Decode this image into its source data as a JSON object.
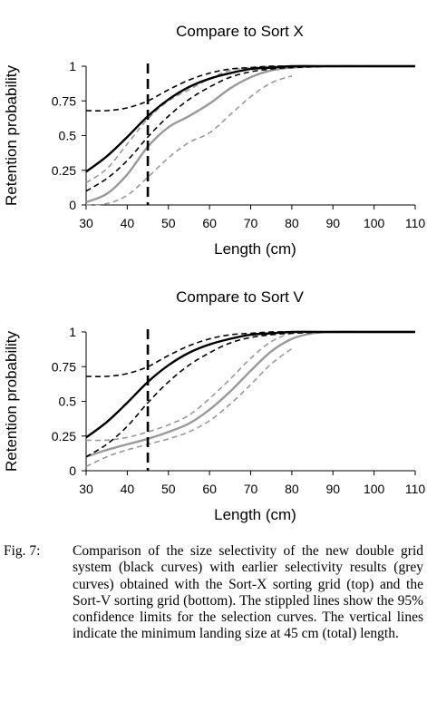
{
  "chart_data": [
    {
      "type": "line",
      "title": "Compare to Sort X",
      "xlabel": "Length (cm)",
      "ylabel": "Retention probability",
      "xlim": [
        30,
        110
      ],
      "ylim": [
        0,
        1
      ],
      "xticks": [
        "30",
        "40",
        "50",
        "60",
        "70",
        "80",
        "90",
        "100",
        "110"
      ],
      "yticks": [
        "0",
        "0.25",
        "0.5",
        "0.75",
        "1"
      ],
      "vline_x": 45,
      "series": [
        {
          "color": "#000000",
          "dash": "solid",
          "x": [
            30,
            35,
            40,
            45,
            50,
            55,
            60,
            65,
            70,
            75,
            80,
            90,
            100,
            110
          ],
          "y": [
            0.24,
            0.35,
            0.49,
            0.64,
            0.76,
            0.85,
            0.91,
            0.95,
            0.98,
            0.99,
            1.0,
            1.0,
            1.0,
            1.0
          ]
        },
        {
          "color": "#000000",
          "dash": "dashed",
          "x": [
            30,
            35,
            40,
            45,
            50,
            55,
            60,
            65,
            70,
            75,
            80,
            90,
            100,
            110
          ],
          "y": [
            0.68,
            0.68,
            0.7,
            0.75,
            0.83,
            0.9,
            0.95,
            0.98,
            0.99,
            1.0,
            1.0,
            1.0,
            1.0,
            1.0
          ]
        },
        {
          "color": "#000000",
          "dash": "dashed",
          "x": [
            30,
            35,
            40,
            45,
            50,
            55,
            60,
            65,
            70,
            75,
            80,
            90,
            100,
            110
          ],
          "y": [
            0.1,
            0.19,
            0.32,
            0.49,
            0.64,
            0.76,
            0.85,
            0.92,
            0.96,
            0.98,
            0.99,
            1.0,
            1.0,
            1.0
          ]
        },
        {
          "color": "#999999",
          "dash": "solid",
          "x": [
            30,
            35,
            40,
            45,
            50,
            55,
            60,
            65,
            70,
            75,
            80,
            90,
            100,
            110
          ],
          "y": [
            0.02,
            0.08,
            0.22,
            0.42,
            0.56,
            0.64,
            0.73,
            0.84,
            0.92,
            0.97,
            0.99,
            1.0,
            1.0,
            1.0
          ]
        },
        {
          "color": "#999999",
          "dash": "dashed",
          "x": [
            30,
            35,
            40,
            45,
            50,
            55,
            60,
            65,
            70,
            75,
            80,
            90,
            100,
            110
          ],
          "y": [
            0.16,
            0.26,
            0.44,
            0.62,
            0.75,
            0.83,
            0.91,
            0.97,
            0.99,
            1.0,
            1.0,
            1.0,
            1.0,
            1.0
          ]
        },
        {
          "color": "#999999",
          "dash": "dashed",
          "x": [
            30,
            35,
            40,
            45,
            50,
            55,
            60,
            65,
            70,
            75,
            80
          ],
          "y": [
            0.0,
            0.01,
            0.07,
            0.2,
            0.34,
            0.45,
            0.52,
            0.65,
            0.78,
            0.88,
            0.93
          ]
        }
      ]
    },
    {
      "type": "line",
      "title": "Compare to Sort V",
      "xlabel": "Length (cm)",
      "ylabel": "Retention probability",
      "xlim": [
        30,
        110
      ],
      "ylim": [
        0,
        1
      ],
      "xticks": [
        "30",
        "40",
        "50",
        "60",
        "70",
        "80",
        "90",
        "100",
        "110"
      ],
      "yticks": [
        "0",
        "0.25",
        "0.5",
        "0.75",
        "1"
      ],
      "vline_x": 45,
      "series": [
        {
          "color": "#000000",
          "dash": "solid",
          "x": [
            30,
            35,
            40,
            45,
            50,
            55,
            60,
            65,
            70,
            75,
            80,
            90,
            100,
            110
          ],
          "y": [
            0.24,
            0.35,
            0.49,
            0.64,
            0.76,
            0.85,
            0.91,
            0.95,
            0.98,
            0.99,
            1.0,
            1.0,
            1.0,
            1.0
          ]
        },
        {
          "color": "#000000",
          "dash": "dashed",
          "x": [
            30,
            35,
            40,
            45,
            50,
            55,
            60,
            65,
            70,
            75,
            80,
            90,
            100,
            110
          ],
          "y": [
            0.68,
            0.68,
            0.7,
            0.75,
            0.83,
            0.9,
            0.95,
            0.98,
            0.99,
            1.0,
            1.0,
            1.0,
            1.0,
            1.0
          ]
        },
        {
          "color": "#000000",
          "dash": "dashed",
          "x": [
            30,
            35,
            40,
            45,
            50,
            55,
            60,
            65,
            70,
            75,
            80,
            90,
            100,
            110
          ],
          "y": [
            0.1,
            0.19,
            0.32,
            0.49,
            0.64,
            0.76,
            0.85,
            0.92,
            0.96,
            0.98,
            0.99,
            1.0,
            1.0,
            1.0
          ]
        },
        {
          "color": "#999999",
          "dash": "solid",
          "x": [
            30,
            35,
            40,
            45,
            50,
            55,
            60,
            65,
            70,
            75,
            80,
            85,
            90,
            100,
            110
          ],
          "y": [
            0.1,
            0.15,
            0.19,
            0.23,
            0.28,
            0.34,
            0.44,
            0.57,
            0.72,
            0.86,
            0.95,
            0.99,
            1.0,
            1.0,
            1.0
          ]
        },
        {
          "color": "#999999",
          "dash": "dashed",
          "x": [
            30,
            35,
            40,
            45,
            50,
            55,
            60,
            65,
            70,
            75,
            80,
            85,
            90,
            100,
            110
          ],
          "y": [
            0.22,
            0.22,
            0.24,
            0.28,
            0.33,
            0.4,
            0.52,
            0.66,
            0.81,
            0.93,
            0.99,
            1.0,
            1.0,
            1.0,
            1.0
          ]
        },
        {
          "color": "#999999",
          "dash": "dashed",
          "x": [
            30,
            35,
            40,
            45,
            50,
            55,
            60,
            65,
            70,
            75,
            80
          ],
          "y": [
            0.03,
            0.1,
            0.15,
            0.19,
            0.23,
            0.28,
            0.36,
            0.48,
            0.62,
            0.77,
            0.88
          ]
        }
      ]
    }
  ],
  "caption": {
    "label": "Fig. 7:",
    "text": "Comparison of the size selectivity of the new double grid system (black curves) with earlier selectivity results (grey curves) obtained with the Sort-X sorting grid (top) and the Sort-V sorting grid (bottom). The stippled lines show the 95% confidence limits for the selection curves. The vertical lines indicate the minimum landing size at 45 cm (total) length."
  }
}
